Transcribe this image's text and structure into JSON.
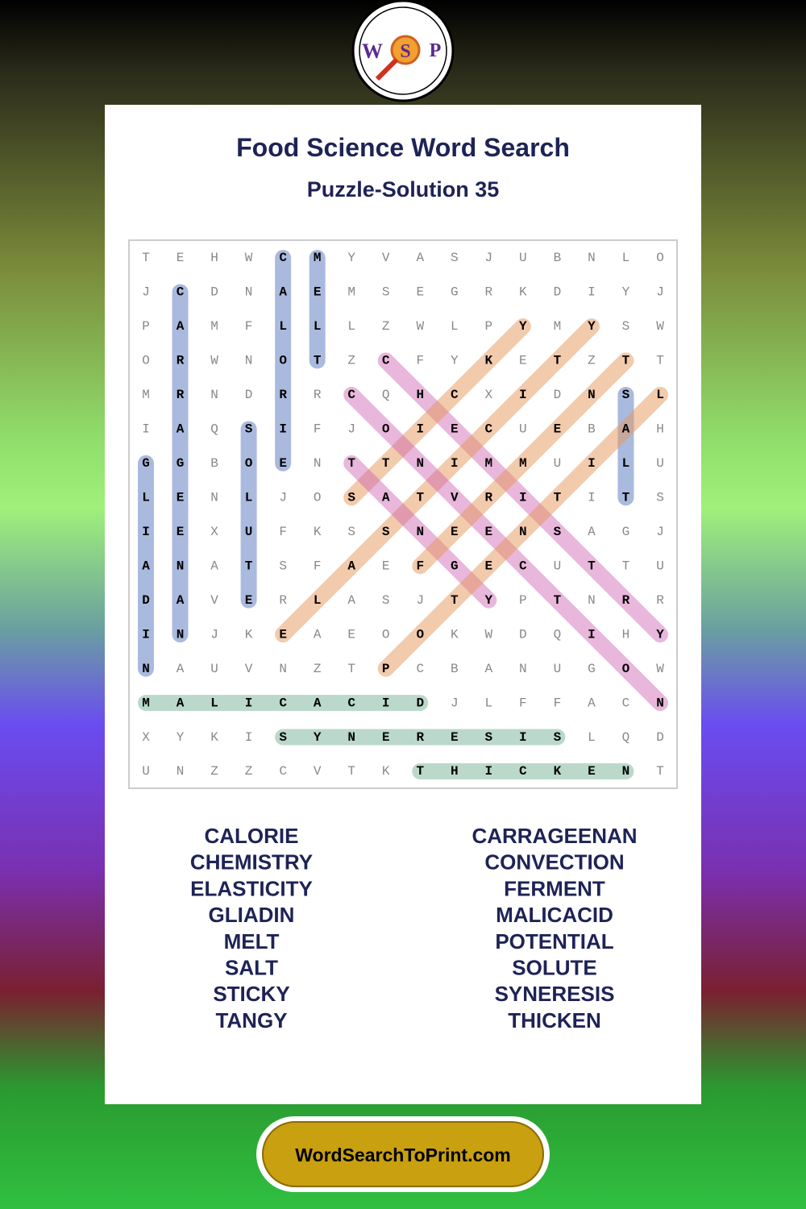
{
  "logo": {
    "letters": [
      "W",
      "S",
      "P"
    ]
  },
  "header": {
    "title": "Food Science Word Search",
    "subtitle": "Puzzle-Solution 35"
  },
  "grid": {
    "rows": [
      [
        "T",
        "E",
        "H",
        "W",
        "C",
        "M",
        "Y",
        "V",
        "A",
        "S",
        "J",
        "U",
        "B",
        "N",
        "L",
        "O"
      ],
      [
        "J",
        "C",
        "D",
        "N",
        "A",
        "E",
        "M",
        "S",
        "E",
        "G",
        "R",
        "K",
        "D",
        "I",
        "Y",
        "J"
      ],
      [
        "P",
        "A",
        "M",
        "F",
        "L",
        "L",
        "L",
        "Z",
        "W",
        "L",
        "P",
        "Y",
        "M",
        "Y",
        "S",
        "W"
      ],
      [
        "O",
        "R",
        "W",
        "N",
        "O",
        "T",
        "Z",
        "C",
        "F",
        "Y",
        "K",
        "E",
        "T",
        "Z",
        "T",
        "T"
      ],
      [
        "M",
        "R",
        "N",
        "D",
        "R",
        "R",
        "C",
        "Q",
        "H",
        "C",
        "X",
        "I",
        "D",
        "N",
        "S",
        "L"
      ],
      [
        "I",
        "A",
        "Q",
        "S",
        "I",
        "F",
        "J",
        "O",
        "I",
        "E",
        "C",
        "U",
        "E",
        "B",
        "A",
        "H"
      ],
      [
        "G",
        "G",
        "B",
        "O",
        "E",
        "N",
        "T",
        "T",
        "N",
        "I",
        "M",
        "M",
        "U",
        "I",
        "L",
        "U"
      ],
      [
        "L",
        "E",
        "N",
        "L",
        "J",
        "O",
        "S",
        "A",
        "T",
        "V",
        "R",
        "I",
        "T",
        "I",
        "T",
        "S"
      ],
      [
        "I",
        "E",
        "X",
        "U",
        "F",
        "K",
        "S",
        "S",
        "N",
        "E",
        "E",
        "N",
        "S",
        "A",
        "G",
        "J"
      ],
      [
        "A",
        "N",
        "A",
        "T",
        "S",
        "F",
        "A",
        "E",
        "F",
        "G",
        "E",
        "C",
        "U",
        "T",
        "T",
        "U"
      ],
      [
        "D",
        "A",
        "V",
        "E",
        "R",
        "L",
        "A",
        "S",
        "J",
        "T",
        "Y",
        "P",
        "T",
        "N",
        "R",
        "R"
      ],
      [
        "I",
        "N",
        "J",
        "K",
        "E",
        "A",
        "E",
        "O",
        "O",
        "K",
        "W",
        "D",
        "Q",
        "I",
        "H",
        "Y"
      ],
      [
        "N",
        "A",
        "U",
        "V",
        "N",
        "Z",
        "T",
        "P",
        "C",
        "B",
        "A",
        "N",
        "U",
        "G",
        "O",
        "W"
      ],
      [
        "M",
        "A",
        "L",
        "I",
        "C",
        "A",
        "C",
        "I",
        "D",
        "J",
        "L",
        "F",
        "F",
        "A",
        "C",
        "N"
      ],
      [
        "X",
        "Y",
        "K",
        "I",
        "S",
        "Y",
        "N",
        "E",
        "R",
        "E",
        "S",
        "I",
        "S",
        "L",
        "Q",
        "D"
      ],
      [
        "U",
        "N",
        "Z",
        "Z",
        "C",
        "V",
        "T",
        "K",
        "T",
        "H",
        "I",
        "C",
        "K",
        "E",
        "N",
        "T"
      ]
    ]
  },
  "words": {
    "left": [
      "CALORIE",
      "CHEMISTRY",
      "ELASTICITY",
      "GLIADIN",
      "MELT",
      "SALT",
      "STICKY",
      "TANGY"
    ],
    "right": [
      "CARRAGEENAN",
      "CONVECTION",
      "FERMENT",
      "MALICACID",
      "POTENTIAL",
      "SOLUTE",
      "SYNERESIS",
      "THICKEN"
    ]
  },
  "footer": {
    "site": "WordSearchToPrint.com"
  }
}
